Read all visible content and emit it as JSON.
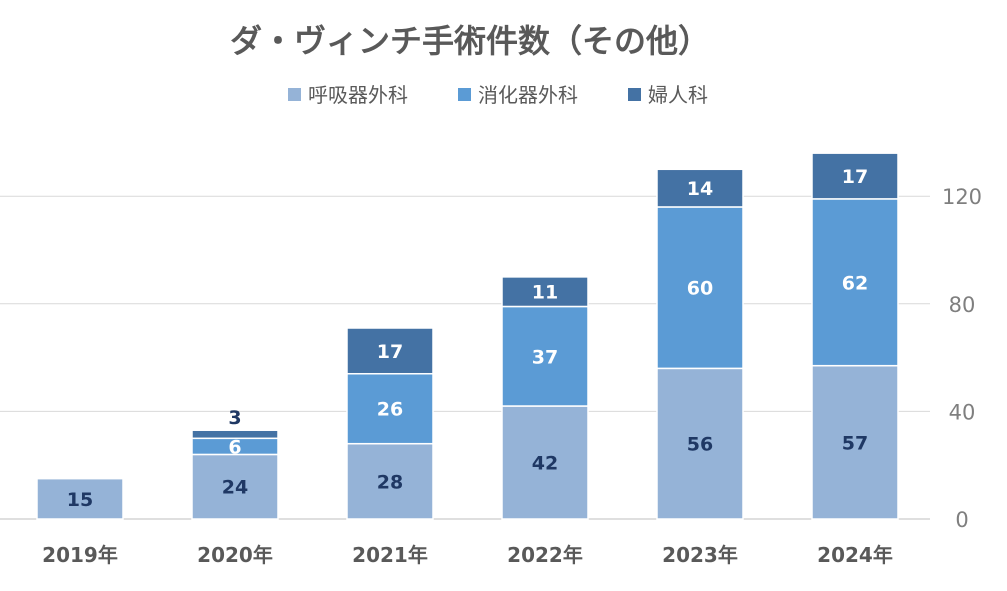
{
  "chart_data": {
    "type": "bar",
    "stacked": true,
    "title": "ダ・ヴィンチ手術件数（その他）",
    "categories": [
      "2019年",
      "2020年",
      "2021年",
      "2022年",
      "2023年",
      "2024年"
    ],
    "series": [
      {
        "name": "呼吸器外科",
        "color": "#95b3d7",
        "values": [
          15,
          24,
          28,
          42,
          56,
          57
        ]
      },
      {
        "name": "消化器外科",
        "color": "#5b9bd5",
        "values": [
          null,
          6,
          26,
          37,
          60,
          62
        ]
      },
      {
        "name": "婦人科",
        "color": "#4472a4",
        "values": [
          null,
          3,
          17,
          11,
          14,
          17
        ]
      }
    ],
    "y_ticks": [
      0,
      40,
      80,
      120
    ],
    "ylim": [
      0,
      140
    ],
    "y_axis_position": "right",
    "legend_position": "top",
    "grid": true
  }
}
